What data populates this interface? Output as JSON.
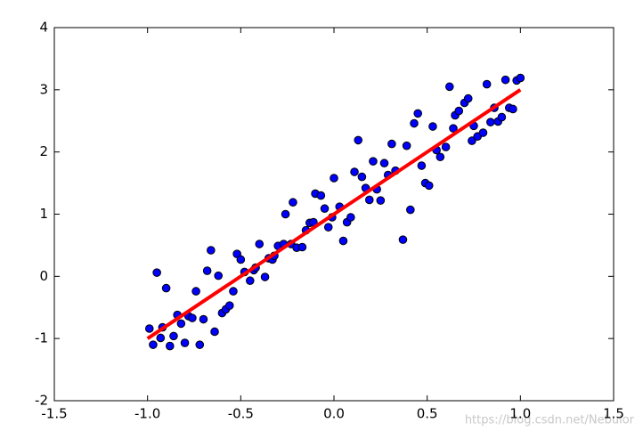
{
  "chart_data": {
    "type": "scatter",
    "xlim": [
      -1.5,
      1.5
    ],
    "xticks": [
      -1.5,
      -1.0,
      -0.5,
      0.0,
      0.5,
      1.0,
      1.5
    ],
    "ylim": [
      -2,
      4
    ],
    "yticks": [
      -2,
      -1,
      0,
      1,
      2,
      3,
      4
    ],
    "color": "#0000ff",
    "x": [
      -0.99,
      -0.97,
      -0.95,
      -0.93,
      -0.92,
      -0.9,
      -0.88,
      -0.86,
      -0.84,
      -0.82,
      -0.8,
      -0.78,
      -0.76,
      -0.74,
      -0.72,
      -0.7,
      -0.68,
      -0.66,
      -0.64,
      -0.62,
      -0.6,
      -0.58,
      -0.56,
      -0.54,
      -0.52,
      -0.5,
      -0.48,
      -0.45,
      -0.43,
      -0.42,
      -0.4,
      -0.37,
      -0.35,
      -0.33,
      -0.32,
      -0.3,
      -0.27,
      -0.26,
      -0.23,
      -0.22,
      -0.2,
      -0.17,
      -0.15,
      -0.13,
      -0.11,
      -0.1,
      -0.07,
      -0.05,
      -0.03,
      -0.01,
      0.0,
      0.03,
      0.05,
      0.07,
      0.09,
      0.11,
      0.13,
      0.15,
      0.17,
      0.19,
      0.21,
      0.23,
      0.25,
      0.27,
      0.29,
      0.31,
      0.33,
      0.37,
      0.39,
      0.41,
      0.43,
      0.45,
      0.47,
      0.49,
      0.51,
      0.53,
      0.55,
      0.57,
      0.6,
      0.62,
      0.64,
      0.65,
      0.67,
      0.7,
      0.72,
      0.74,
      0.75,
      0.77,
      0.8,
      0.82,
      0.84,
      0.86,
      0.88,
      0.9,
      0.92,
      0.94,
      0.96,
      0.98,
      1.0
    ],
    "y": [
      -0.84,
      -1.1,
      0.06,
      -0.99,
      -0.82,
      -0.19,
      -1.12,
      -0.96,
      -0.62,
      -0.76,
      -1.07,
      -0.64,
      -0.67,
      -0.24,
      -1.1,
      -0.69,
      0.09,
      0.42,
      -0.89,
      0.01,
      -0.59,
      -0.53,
      -0.47,
      -0.24,
      0.36,
      0.27,
      0.07,
      -0.07,
      0.1,
      0.14,
      0.52,
      -0.01,
      0.29,
      0.27,
      0.33,
      0.49,
      0.52,
      1.0,
      0.52,
      1.19,
      0.46,
      0.47,
      0.74,
      0.86,
      0.87,
      1.33,
      1.3,
      1.09,
      0.79,
      0.95,
      1.58,
      1.12,
      0.57,
      0.87,
      0.95,
      1.68,
      2.19,
      1.6,
      1.42,
      1.23,
      1.85,
      1.4,
      1.22,
      1.82,
      1.63,
      2.13,
      1.7,
      0.59,
      2.1,
      1.07,
      2.46,
      2.62,
      1.78,
      1.5,
      1.46,
      2.41,
      2.03,
      1.92,
      2.08,
      3.05,
      2.38,
      2.59,
      2.66,
      2.79,
      2.86,
      2.18,
      2.42,
      2.25,
      2.31,
      3.09,
      2.48,
      2.71,
      2.49,
      2.56,
      3.16,
      2.71,
      2.69,
      3.15,
      3.19
    ],
    "fit": {
      "x": [
        -1.0,
        1.0
      ],
      "y": [
        -1.0,
        3.0
      ],
      "color": "#ff0000"
    },
    "annotation": "https://blog.csdn.net/Nebulor"
  }
}
